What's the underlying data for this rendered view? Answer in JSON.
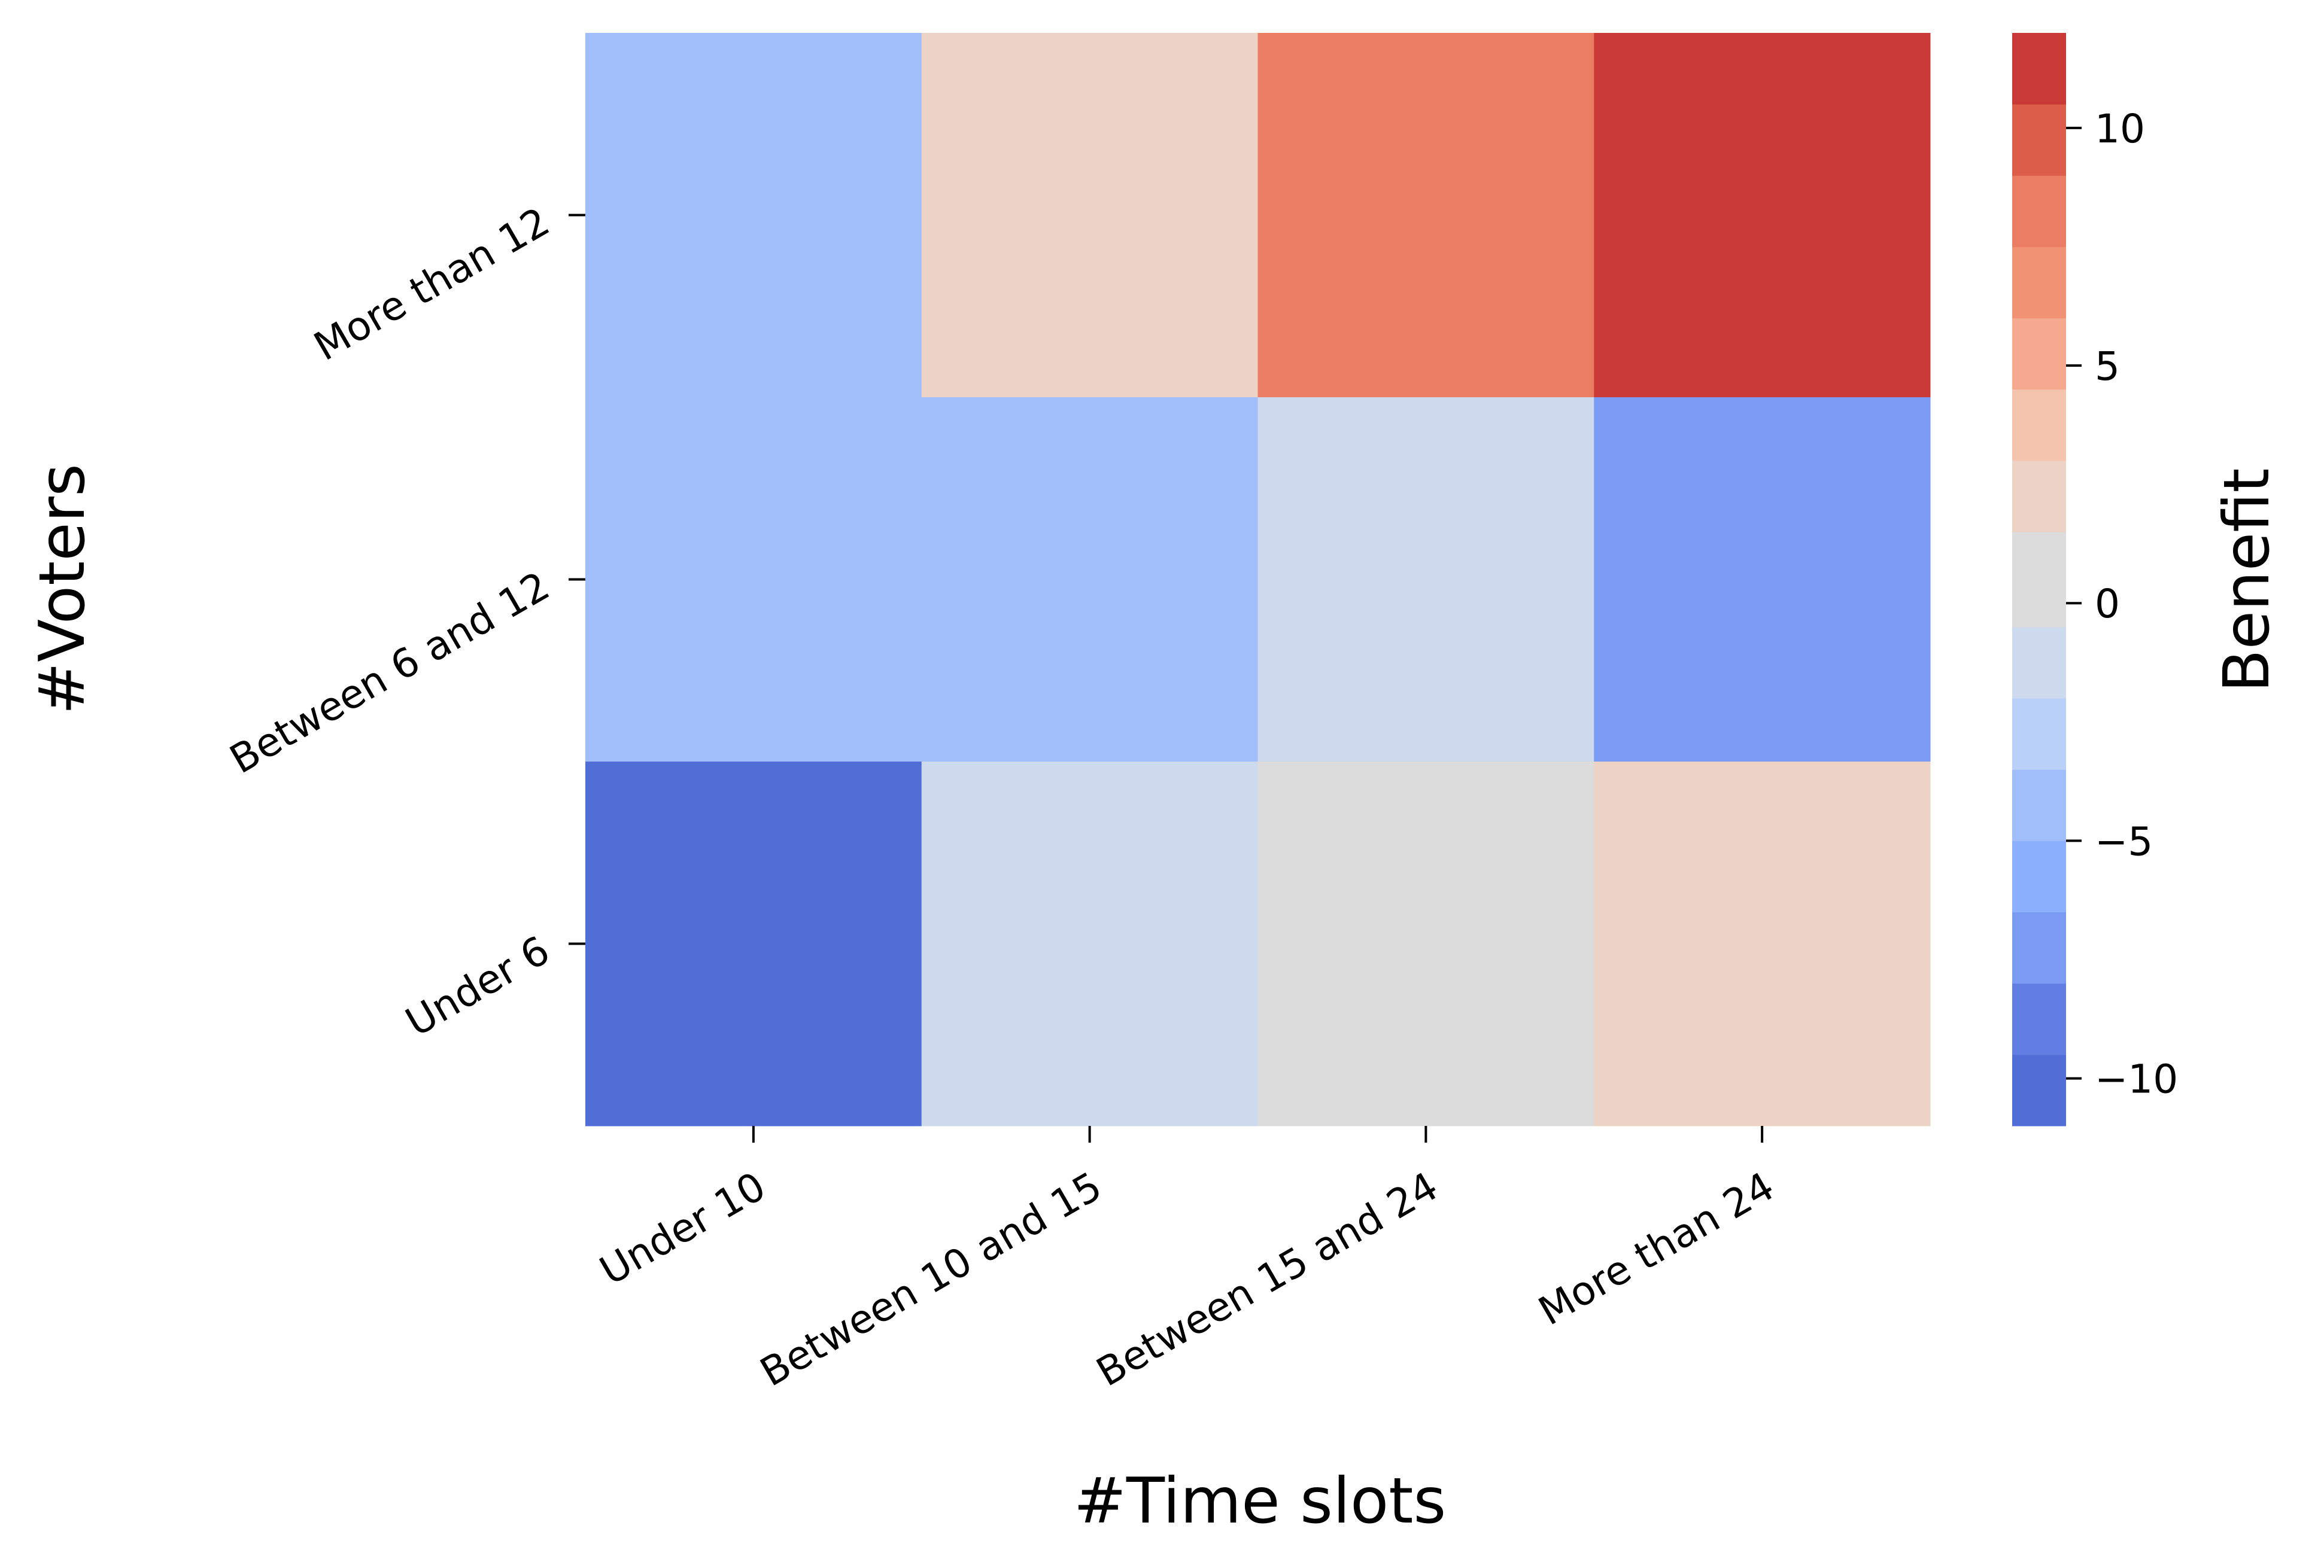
{
  "chart_data": {
    "type": "heatmap",
    "xlabel": "#Time slots",
    "ylabel": "#Voters",
    "x_categories": [
      "Under 10",
      "Between 10 and 15",
      "Between 15 and 24",
      "More than 24"
    ],
    "y_categories": [
      "More than 12",
      "Between 6 and 12",
      "Under 6"
    ],
    "values": [
      [
        -5,
        2,
        8,
        12
      ],
      [
        -5,
        -5,
        -2,
        -7
      ],
      [
        -10,
        -1,
        1,
        2
      ]
    ],
    "colorbar": {
      "label": "Benefit",
      "range": [
        -11,
        12
      ],
      "ticks": [
        -10,
        -5,
        0,
        5,
        10
      ],
      "tick_labels": [
        "−10",
        "−5",
        "0",
        "5",
        "10"
      ],
      "bins": [
        {
          "lo": -11,
          "hi": -9.5,
          "color": "#516ed7"
        },
        {
          "lo": -9.5,
          "hi": -8,
          "color": "#627ee2"
        },
        {
          "lo": -8,
          "hi": -6.5,
          "color": "#7a9af4"
        },
        {
          "lo": -6.5,
          "hi": -5,
          "color": "#8db0fe"
        },
        {
          "lo": -5,
          "hi": -3.5,
          "color": "#9fbefa"
        },
        {
          "lo": -3.5,
          "hi": -2,
          "color": "#b9d0f9"
        },
        {
          "lo": -2,
          "hi": -0.5,
          "color": "#cdd9ec"
        },
        {
          "lo": -0.5,
          "hi": 1.5,
          "color": "#dcdcdc"
        },
        {
          "lo": 1.5,
          "hi": 3,
          "color": "#ecd3c5"
        },
        {
          "lo": 3,
          "hi": 4.5,
          "color": "#f4c4ad"
        },
        {
          "lo": 4.5,
          "hi": 6,
          "color": "#f5aa8f"
        },
        {
          "lo": 6,
          "hi": 7.5,
          "color": "#f29274"
        },
        {
          "lo": 7.5,
          "hi": 9,
          "color": "#eb7d65"
        },
        {
          "lo": 9,
          "hi": 10.5,
          "color": "#dc5d4a"
        },
        {
          "lo": 10.5,
          "hi": 12,
          "color": "#c93a37"
        }
      ]
    },
    "grid": false,
    "legend": "colorbar-right"
  }
}
